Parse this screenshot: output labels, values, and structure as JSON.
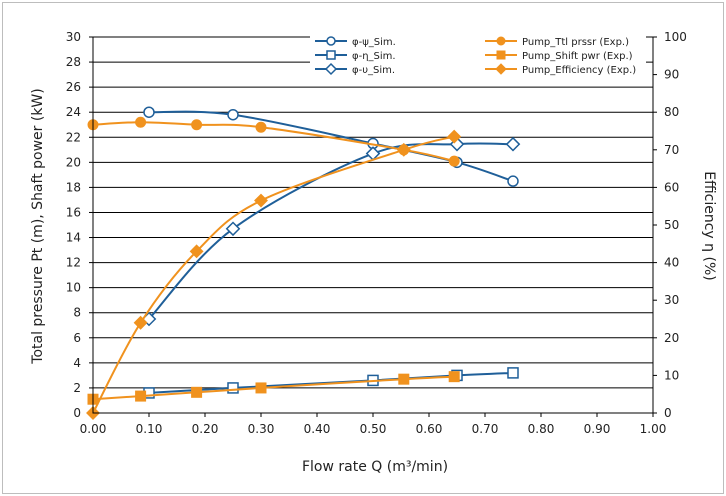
{
  "chart_data": {
    "type": "line",
    "xlabel": "Flow rate Q (m³/min)",
    "ylabel": "Total pressure Pt (m), Shaft power (kW)",
    "y2label": "Efficiency η (%)",
    "xlim": [
      0,
      1.0
    ],
    "ylim": [
      0,
      30
    ],
    "y2lim": [
      0,
      100
    ],
    "x_ticks": [
      "0.00",
      "0.10",
      "0.20",
      "0.30",
      "0.40",
      "0.50",
      "0.60",
      "0.70",
      "0.80",
      "0.90",
      "1.00"
    ],
    "y_ticks": [
      "0",
      "2",
      "4",
      "6",
      "8",
      "10",
      "12",
      "14",
      "16",
      "18",
      "20",
      "22",
      "24",
      "26",
      "28",
      "30"
    ],
    "y2_ticks": [
      "0",
      "10",
      "20",
      "30",
      "40",
      "50",
      "60",
      "70",
      "80",
      "90",
      "100"
    ],
    "grid": "horizontal",
    "legend_position": "top-right",
    "series": [
      {
        "name": "φ-ψ_Sim.",
        "axis": "left",
        "color": "#1f5f99",
        "marker": "circle-open",
        "x": [
          0.1,
          0.25,
          0.5,
          0.65,
          0.75
        ],
        "y": [
          24.0,
          23.8,
          21.5,
          20.0,
          18.5
        ]
      },
      {
        "name": "φ-η_Sim.",
        "axis": "left",
        "color": "#1f5f99",
        "marker": "square-open",
        "x": [
          0.1,
          0.25,
          0.5,
          0.65,
          0.75
        ],
        "y": [
          1.6,
          2.0,
          2.6,
          3.0,
          3.2
        ]
      },
      {
        "name": "φ-υ_Sim.",
        "axis": "right",
        "color": "#1f5f99",
        "marker": "diamond-open",
        "x": [
          0.1,
          0.25,
          0.5,
          0.65,
          0.75
        ],
        "y": [
          25.0,
          49.0,
          69.0,
          71.5,
          71.5
        ]
      },
      {
        "name": "Pump_Ttl prssr (Exp.)",
        "axis": "left",
        "color": "#f0921e",
        "marker": "circle",
        "x": [
          0.0,
          0.085,
          0.185,
          0.3,
          0.555,
          0.645
        ],
        "y": [
          23.0,
          23.2,
          23.0,
          22.8,
          21.0,
          20.1
        ]
      },
      {
        "name": "Pump_Shift pwr (Exp.)",
        "axis": "left",
        "color": "#f0921e",
        "marker": "square",
        "x": [
          0.0,
          0.085,
          0.185,
          0.3,
          0.555,
          0.645
        ],
        "y": [
          1.1,
          1.35,
          1.65,
          2.0,
          2.7,
          2.9
        ]
      },
      {
        "name": "Pump_Efficiency (Exp.)",
        "axis": "right",
        "color": "#f0921e",
        "marker": "diamond",
        "x": [
          0.0,
          0.085,
          0.185,
          0.3,
          0.555,
          0.645
        ],
        "y": [
          0.0,
          24.0,
          43.0,
          56.5,
          70.0,
          73.5
        ]
      }
    ]
  }
}
